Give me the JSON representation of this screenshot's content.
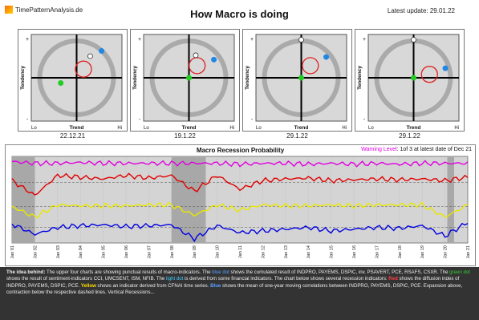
{
  "header": {
    "logo_text": "TimePatternAnalysis.de",
    "title": "How Macro is doing",
    "latest_update": "Latest update: 29.01.22"
  },
  "quadrant_labels": {
    "y_axis": "Tendency",
    "x_axis": "Trend",
    "lo": "Lo",
    "hi": "Hi",
    "plus": "+",
    "minus": "-"
  },
  "quadrants": [
    {
      "date": "22.12.21",
      "blue_dot": [
        0.55,
        0.62
      ],
      "green_dot": [
        -0.35,
        -0.12
      ],
      "white_dot": [
        0.3,
        0.5
      ],
      "circle": [
        0.15,
        0.2
      ]
    },
    {
      "date": "19.1.22",
      "blue_dot": [
        0.55,
        0.42
      ],
      "green_dot": [
        0.0,
        0.0
      ],
      "white_dot": [
        0.15,
        0.52
      ],
      "circle": [
        0.18,
        0.28
      ]
    },
    {
      "date": "29.1.22",
      "blue_dot": [
        0.55,
        0.48
      ],
      "green_dot": [
        0.0,
        0.0
      ],
      "white_dot": [
        0.0,
        0.88
      ],
      "circle": [
        0.2,
        0.28
      ]
    },
    {
      "date": "29.1.22",
      "blue_dot": [
        0.7,
        0.22
      ],
      "green_dot": [
        0.0,
        0.0
      ],
      "white_dot": [
        0.0,
        0.88
      ],
      "circle": [
        0.35,
        0.08
      ]
    }
  ],
  "chart_data": {
    "type": "line",
    "title": "Macro Recession Probability",
    "warning": {
      "label": "Warning Level",
      "text": "1of 3 at latest date of Dec 21"
    },
    "x": [
      "Jan 01",
      "Jan 02",
      "Jan 03",
      "Jan 04",
      "Jan 05",
      "Jan 06",
      "Jan 07",
      "Jan 08",
      "Jan 09",
      "Jan 10",
      "Jan 11",
      "Jan 12",
      "Jan 13",
      "Jan 14",
      "Jan 15",
      "Jan 16",
      "Jan 17",
      "Jan 18",
      "Jan 19",
      "Jan 20",
      "Jan 21"
    ],
    "colors": {
      "magenta": "#e000e0",
      "red": "#e00000",
      "yellow": "#e8e800",
      "blue": "#0000e0"
    },
    "series": [
      {
        "color": "magenta",
        "values": [
          0.94,
          0.92,
          0.92,
          0.93,
          0.92,
          0.92,
          0.92,
          0.92,
          0.92,
          0.92,
          0.91,
          0.92,
          0.92,
          0.91,
          0.92,
          0.91,
          0.92,
          0.91,
          0.92,
          0.92,
          0.92
        ]
      },
      {
        "color": "red",
        "values": [
          0.72,
          0.55,
          0.78,
          0.76,
          0.74,
          0.78,
          0.75,
          0.78,
          0.6,
          0.78,
          0.62,
          0.72,
          0.74,
          0.75,
          0.72,
          0.73,
          0.74,
          0.73,
          0.74,
          0.72,
          0.76
        ]
      },
      {
        "color": "yellow",
        "values": [
          0.42,
          0.3,
          0.44,
          0.43,
          0.43,
          0.43,
          0.44,
          0.44,
          0.32,
          0.44,
          0.38,
          0.44,
          0.43,
          0.43,
          0.44,
          0.43,
          0.44,
          0.44,
          0.44,
          0.3,
          0.44
        ]
      },
      {
        "color": "blue",
        "values": [
          0.22,
          0.1,
          0.18,
          0.2,
          0.21,
          0.19,
          0.2,
          0.21,
          0.05,
          0.2,
          0.12,
          0.14,
          0.16,
          0.18,
          0.14,
          0.16,
          0.18,
          0.17,
          0.2,
          0.08,
          0.24
        ]
      }
    ],
    "recessions": [
      [
        0.0,
        1.0
      ],
      [
        7.0,
        8.5
      ],
      [
        19.1,
        19.4
      ]
    ]
  },
  "description": {
    "lead": "The idea behind:",
    "t1": " The upper four charts are showing punctual results of macro-indicators. The ",
    "blue_dot": "blue dot",
    "t2": " shows the cumulated result of INDPRO, PAYEMS, DSPIC, inv. PSAVERT, PCE, RSAFS, CSXR. The ",
    "green_dot": "green dot",
    "t3": " shows the result of sentiment-indicators CCI, UMCSENT, ISM, NFIB. The ",
    "light_dot": "light dot",
    "t4": " is derived from some financial indicators. The chart below shows several recession indicators: ",
    "red": "Red",
    "t5": " shows the diffusion index of INDPRO, PAYEMS, DSPIC, PCE. ",
    "yellow": "Yellow",
    "t6": " shows an indicator derived from CFNAI time series. ",
    "blue": "Blue",
    "t7": " shows the mean of one-year moving correlations between INDPRO, PAYEMS, DSPIC, PCE. Expansion above, contraction below the respective dashed lines. Vertical Recessions..."
  }
}
